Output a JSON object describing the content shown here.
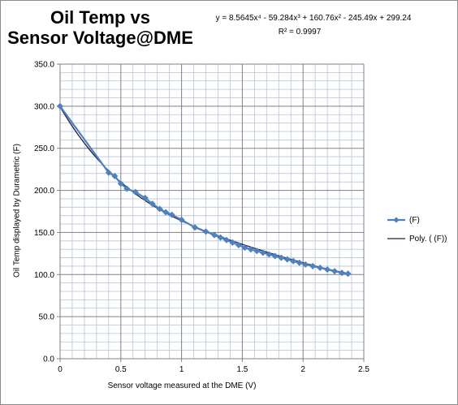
{
  "chart_data": {
    "type": "scatter",
    "title_lines": [
      "Oil Temp vs",
      "Sensor Voltage@DME"
    ],
    "xlabel": "Sensor voltage measured at the DME (V)",
    "ylabel": "Oil Temp displayed by Durametric (F)",
    "xlim": [
      0,
      2.5
    ],
    "ylim": [
      0,
      350
    ],
    "x_ticks": [
      "0",
      "0.5",
      "1",
      "1.5",
      "2",
      "2.5"
    ],
    "y_ticks": [
      "0.0",
      "50.0",
      "100.0",
      "150.0",
      "200.0",
      "250.0",
      "300.0",
      "350.0"
    ],
    "grid": true,
    "legend_position": "right",
    "trendline": {
      "name": "Poly. ( (F))",
      "type": "polynomial",
      "order": 4,
      "coefficients": [
        8.5645,
        -59.284,
        160.76,
        -245.49,
        299.24
      ],
      "equation_text": "y = 8.5645x⁴ - 59.284x³ + 160.76x² - 245.49x + 299.24",
      "r2_text": "R² = 0.9997",
      "color": "#1f1f3a"
    },
    "series": [
      {
        "name": "(F)",
        "color": "#4f81bd",
        "marker": "diamond",
        "x": [
          0,
          0.4,
          0.45,
          0.5,
          0.55,
          0.62,
          0.7,
          0.76,
          0.82,
          0.87,
          0.92,
          1.0,
          1.11,
          1.2,
          1.27,
          1.32,
          1.37,
          1.42,
          1.47,
          1.52,
          1.57,
          1.62,
          1.67,
          1.72,
          1.77,
          1.82,
          1.87,
          1.92,
          1.97,
          2.02,
          2.08,
          2.14,
          2.2,
          2.26,
          2.32,
          2.37
        ],
        "y": [
          300,
          221,
          217,
          208,
          202,
          198,
          191,
          184,
          178,
          174,
          171,
          165,
          156,
          151,
          147,
          144,
          141,
          138,
          135,
          132,
          130,
          128,
          126,
          124,
          122,
          120,
          118,
          116,
          114,
          112,
          110,
          108,
          106,
          104,
          102,
          101
        ]
      }
    ]
  }
}
